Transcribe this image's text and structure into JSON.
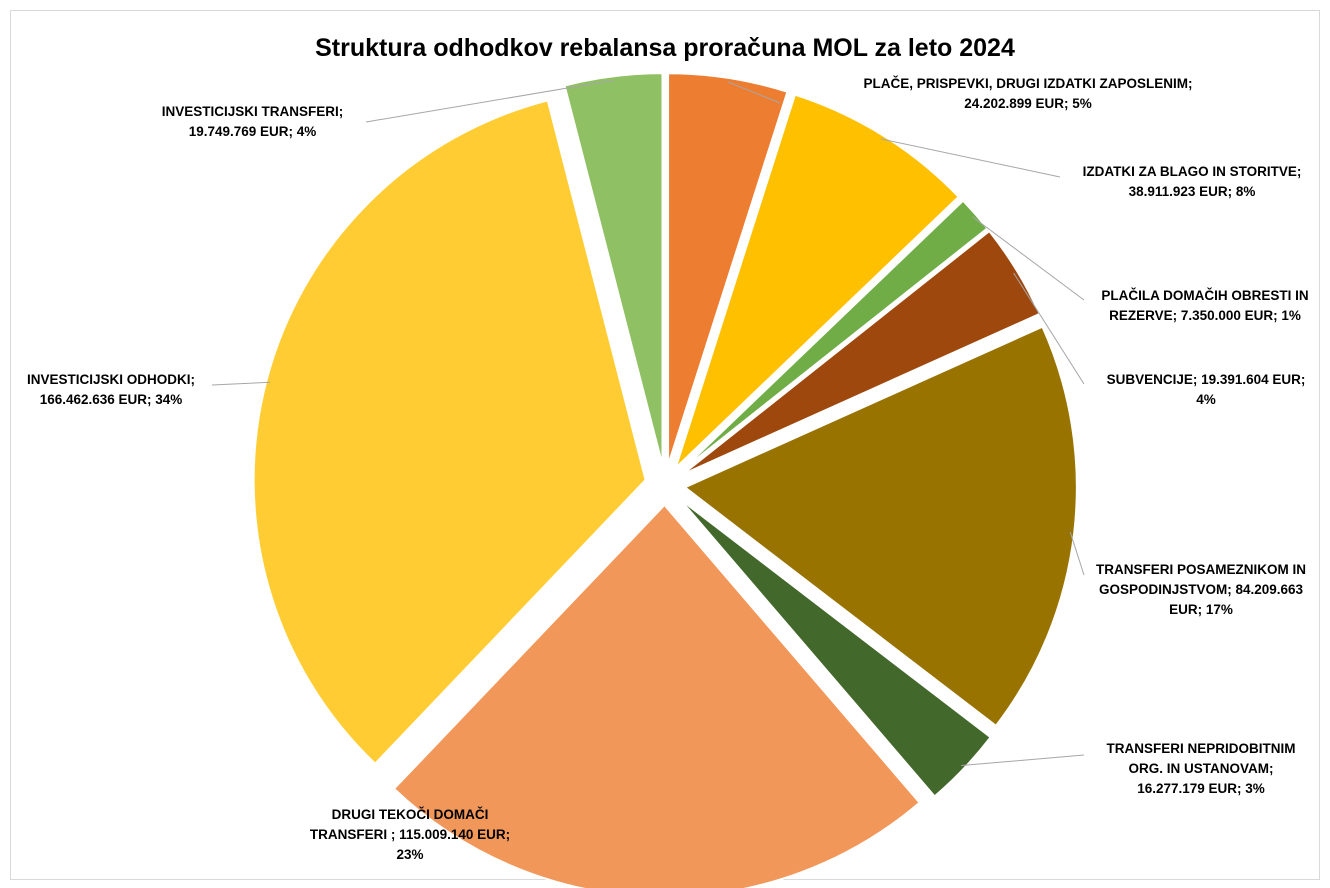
{
  "chart_data": {
    "type": "pie",
    "title": "Struktura odhodkov rebalansa proračuna MOL za leto 2024",
    "legend": "none",
    "slices": [
      {
        "label": "PLAČE, PRISPEVKI, DRUGI IZDATKI ZAPOSLENIM",
        "value": 24202899,
        "value_text": "24.202.899 EUR",
        "percent": "5%",
        "color": "#ED7D31"
      },
      {
        "label": "IZDATKI ZA BLAGO IN STORITVE",
        "value": 38911923,
        "value_text": "38.911.923 EUR",
        "percent": "8%",
        "color": "#FFC000"
      },
      {
        "label": "PLAČILA DOMAČIH OBRESTI IN REZERVE",
        "value": 7350000,
        "value_text": "7.350.000 EUR",
        "percent": "1%",
        "color": "#70AD47"
      },
      {
        "label": "SUBVENCIJE",
        "value": 19391604,
        "value_text": "19.391.604 EUR",
        "percent": "4%",
        "color": "#9E480E"
      },
      {
        "label": "TRANSFERI POSAMEZNIKOM IN GOSPODINJSTVOM",
        "value": 84209663,
        "value_text": "84.209.663 EUR",
        "percent": "17%",
        "color": "#997300"
      },
      {
        "label": "TRANSFERI NEPRIDOBITNIM ORG. IN USTANOVAM",
        "value": 16277179,
        "value_text": "16.277.179 EUR",
        "percent": "3%",
        "color": "#43682B"
      },
      {
        "label": "DRUGI TEKOČI DOMAČI TRANSFERI ",
        "value": 115009140,
        "value_text": "115.009.140 EUR",
        "percent": "23%",
        "color": "#F1975A"
      },
      {
        "label": "INVESTICIJSKI ODHODKI",
        "value": 166462636,
        "value_text": "166.462.636 EUR",
        "percent": "34%",
        "color": "#FFCD33"
      },
      {
        "label": "INVESTICIJSKI TRANSFERI",
        "value": 19749769,
        "value_text": "19.749.769 EUR",
        "percent": "4%",
        "color": "#8FC164"
      }
    ]
  }
}
